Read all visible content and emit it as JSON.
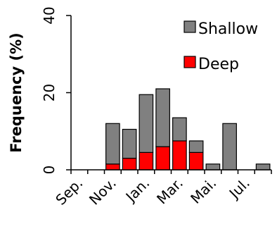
{
  "chart_data": {
    "type": "bar",
    "stacked": true,
    "title": "",
    "xlabel": "",
    "ylabel": "Frequency (%)",
    "ylim": [
      0,
      40
    ],
    "yticks": [
      0,
      20,
      40
    ],
    "grid": false,
    "legend_position": "top-right",
    "categories": [
      "Sep.",
      "Oct.",
      "Nov.",
      "Dec.",
      "Jan.",
      "Feb.",
      "Mar.",
      "Apr.",
      "Mai.",
      "Jun.",
      "Jul.",
      "Aug."
    ],
    "tick_labels": [
      "Sep.",
      "",
      "Nov.",
      "",
      "Jan.",
      "",
      "Mar.",
      "",
      "Mai.",
      "",
      "Jul.",
      ""
    ],
    "series": [
      {
        "name": "Deep",
        "color": "#ff0000",
        "values": [
          0,
          0,
          1.5,
          3,
          4.5,
          6,
          7.5,
          4.5,
          0,
          0,
          0,
          0
        ]
      },
      {
        "name": "Shallow",
        "color": "#808080",
        "values": [
          0,
          0,
          10.5,
          7.5,
          15,
          15,
          6,
          3,
          1.5,
          12,
          0,
          1.5
        ]
      }
    ],
    "legend": [
      {
        "label": "Shallow",
        "color": "#808080"
      },
      {
        "label": "Deep",
        "color": "#ff0000"
      }
    ]
  }
}
